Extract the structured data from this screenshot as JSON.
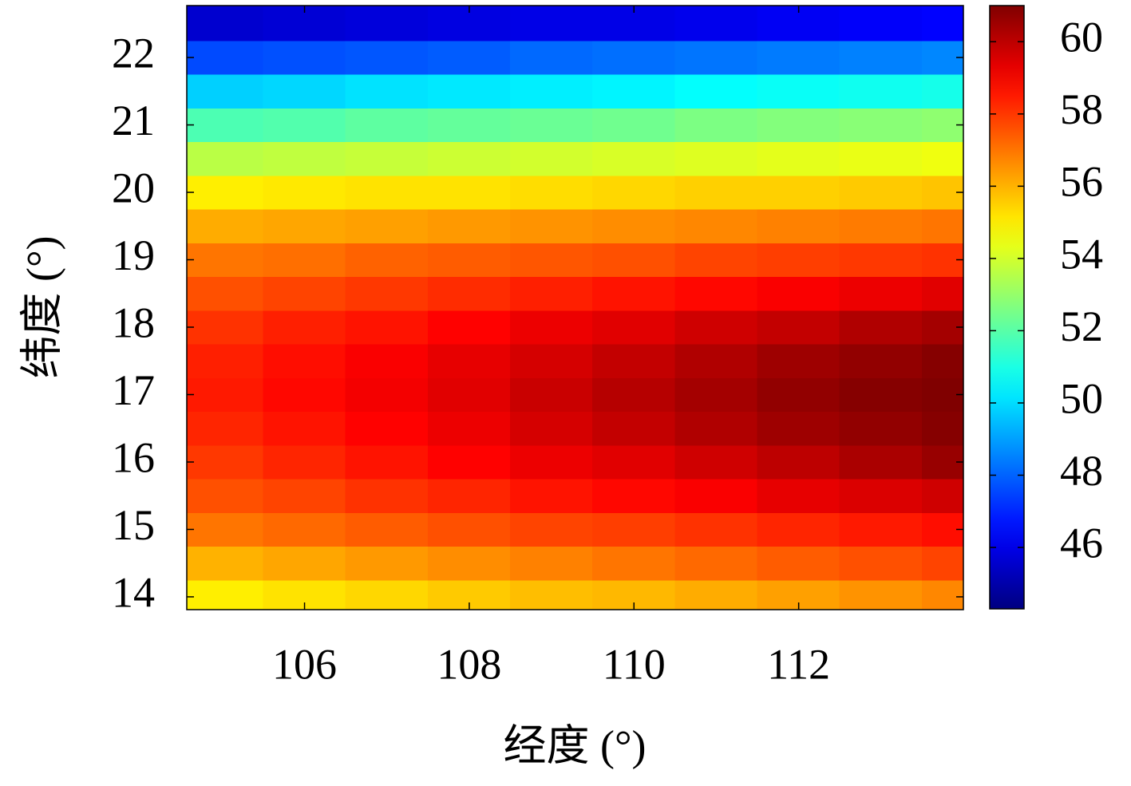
{
  "chart_data": {
    "type": "heatmap",
    "xlabel": "经度 (°)",
    "ylabel": "纬度 (°)",
    "colormap": "jet",
    "x": [
      105,
      106,
      107,
      108,
      109,
      110,
      111,
      112,
      113,
      114
    ],
    "y": [
      14,
      14.5,
      15,
      15.5,
      16,
      16.5,
      17,
      17.5,
      18,
      18.5,
      19,
      19.5,
      20,
      20.5,
      21,
      21.5,
      22,
      22.5
    ],
    "z": [
      [
        55,
        55.2,
        55.4,
        55.6,
        55.8,
        55.9,
        56.1,
        56.3,
        56.5,
        56.7
      ],
      [
        56,
        56.2,
        56.4,
        56.6,
        56.8,
        57,
        57.2,
        57.4,
        57.6,
        57.8
      ],
      [
        57,
        57.2,
        57.4,
        57.6,
        57.8,
        57.9,
        58.1,
        58.3,
        58.5,
        58.7
      ],
      [
        57.6,
        57.8,
        58.1,
        58.3,
        58.6,
        58.8,
        59,
        59.3,
        59.5,
        59.7
      ],
      [
        58,
        58.3,
        58.6,
        58.9,
        59.2,
        59.4,
        59.7,
        60,
        60.3,
        60.6
      ],
      [
        58.3,
        58.6,
        58.9,
        59.2,
        59.6,
        59.9,
        60.2,
        60.5,
        60.7,
        60.9
      ],
      [
        58.5,
        58.8,
        59.1,
        59.4,
        59.8,
        60.1,
        60.4,
        60.7,
        60.9,
        61
      ],
      [
        58.4,
        58.7,
        59,
        59.3,
        59.6,
        59.9,
        60.2,
        60.5,
        60.7,
        60.9
      ],
      [
        58.1,
        58.4,
        58.6,
        58.9,
        59.2,
        59.4,
        59.7,
        59.9,
        60.2,
        60.4
      ],
      [
        57.6,
        57.8,
        58,
        58.2,
        58.4,
        58.6,
        58.8,
        59,
        59.2,
        59.4
      ],
      [
        57,
        57.1,
        57.3,
        57.4,
        57.5,
        57.6,
        57.8,
        57.9,
        58,
        58.1
      ],
      [
        56.1,
        56.2,
        56.3,
        56.4,
        56.5,
        56.6,
        56.7,
        56.8,
        56.9,
        57
      ],
      [
        55,
        55.1,
        55.2,
        55.2,
        55.3,
        55.4,
        55.5,
        55.5,
        55.6,
        55.7
      ],
      [
        53.6,
        53.7,
        53.8,
        53.9,
        54,
        54.1,
        54.2,
        54.3,
        54.4,
        54.5
      ],
      [
        51.8,
        51.9,
        52.1,
        52.2,
        52.3,
        52.4,
        52.6,
        52.7,
        52.8,
        52.9
      ],
      [
        49.8,
        49.9,
        50.1,
        50.2,
        50.3,
        50.4,
        50.6,
        50.7,
        50.8,
        50.9
      ],
      [
        47.6,
        47.7,
        47.8,
        47.9,
        48.1,
        48.2,
        48.3,
        48.4,
        48.5,
        48.6
      ],
      [
        45.6,
        45.7,
        45.8,
        45.9,
        46,
        46,
        46.1,
        46.2,
        46.3,
        46.4
      ]
    ],
    "xlim": [
      104.57,
      114.0
    ],
    "ylim": [
      13.81,
      22.77
    ],
    "xticks": [
      106,
      108,
      110,
      112
    ],
    "yticks": [
      14,
      15,
      16,
      17,
      18,
      19,
      20,
      21,
      22
    ],
    "clim": [
      44.3,
      61.0
    ],
    "cticks": [
      46,
      48,
      50,
      52,
      54,
      56,
      58,
      60
    ]
  }
}
